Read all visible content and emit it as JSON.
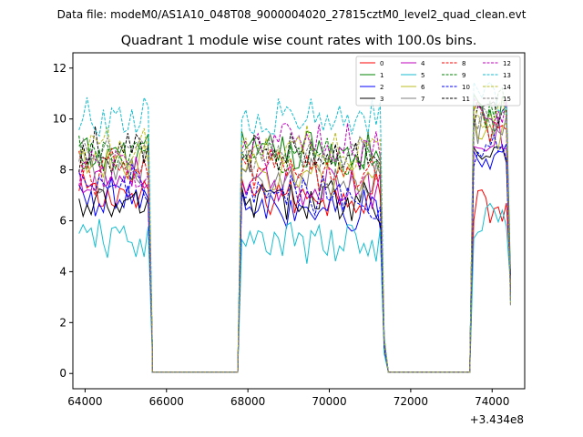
{
  "suptitle": "Data file: modeM0/AS1A10_048T08_9000004020_27815cztM0_level2_quad_clean.evt",
  "chart_data": {
    "type": "line",
    "title": "Quadrant 1 module wise count rates with 100.0s bins.",
    "xlabel": "",
    "ylabel": "",
    "x_offset_label": "+3.434e8",
    "xlim": [
      63700,
      74800
    ],
    "ylim": [
      -0.6,
      12.6
    ],
    "xticks": [
      64000,
      66000,
      68000,
      70000,
      72000,
      74000
    ],
    "yticks": [
      0,
      2,
      4,
      6,
      8,
      10,
      12
    ],
    "legend": "top-right",
    "segments": [
      {
        "start": 63850,
        "count": 18
      },
      {
        "start": 67850,
        "count": 35
      },
      {
        "start": 73550,
        "count": 9
      }
    ],
    "gaps": [
      {
        "from": 65650,
        "to": 67750
      },
      {
        "from": 71450,
        "to": 73450
      }
    ],
    "series": [
      {
        "name": "0",
        "color": "#ff0000",
        "dash": false,
        "base": [
          7.0,
          7.0,
          6.6
        ]
      },
      {
        "name": "1",
        "color": "#008000",
        "dash": false,
        "base": [
          8.5,
          8.7,
          10.2
        ]
      },
      {
        "name": "2",
        "color": "#0000ff",
        "dash": false,
        "base": [
          6.9,
          6.4,
          8.2
        ]
      },
      {
        "name": "3",
        "color": "#000000",
        "dash": false,
        "base": [
          6.5,
          6.8,
          8.8
        ]
      },
      {
        "name": "4",
        "color": "#bf00bf",
        "dash": false,
        "base": [
          7.8,
          7.3,
          9.3
        ]
      },
      {
        "name": "5",
        "color": "#17becf",
        "dash": false,
        "base": [
          5.3,
          5.1,
          6.0
        ]
      },
      {
        "name": "6",
        "color": "#bcbd22",
        "dash": false,
        "base": [
          8.3,
          7.8,
          9.6
        ]
      },
      {
        "name": "7",
        "color": "#7f7f7f",
        "dash": false,
        "base": [
          8.0,
          7.6,
          9.4
        ]
      },
      {
        "name": "8",
        "color": "#ff0000",
        "dash": true,
        "base": [
          7.9,
          8.0,
          9.9
        ]
      },
      {
        "name": "9",
        "color": "#008000",
        "dash": true,
        "base": [
          8.6,
          8.4,
          10.3
        ]
      },
      {
        "name": "10",
        "color": "#0000ff",
        "dash": true,
        "base": [
          7.3,
          7.0,
          8.6
        ]
      },
      {
        "name": "11",
        "color": "#000000",
        "dash": true,
        "base": [
          8.8,
          8.6,
          10.5
        ]
      },
      {
        "name": "12",
        "color": "#bf00bf",
        "dash": true,
        "base": [
          8.1,
          8.9,
          10.4
        ]
      },
      {
        "name": "13",
        "color": "#17becf",
        "dash": true,
        "base": [
          10.0,
          9.9,
          11.0
        ]
      },
      {
        "name": "14",
        "color": "#bcbd22",
        "dash": true,
        "base": [
          8.9,
          8.8,
          10.2
        ]
      },
      {
        "name": "15",
        "color": "#7f7f7f",
        "dash": true,
        "base": [
          8.6,
          8.6,
          10.0
        ]
      }
    ]
  }
}
